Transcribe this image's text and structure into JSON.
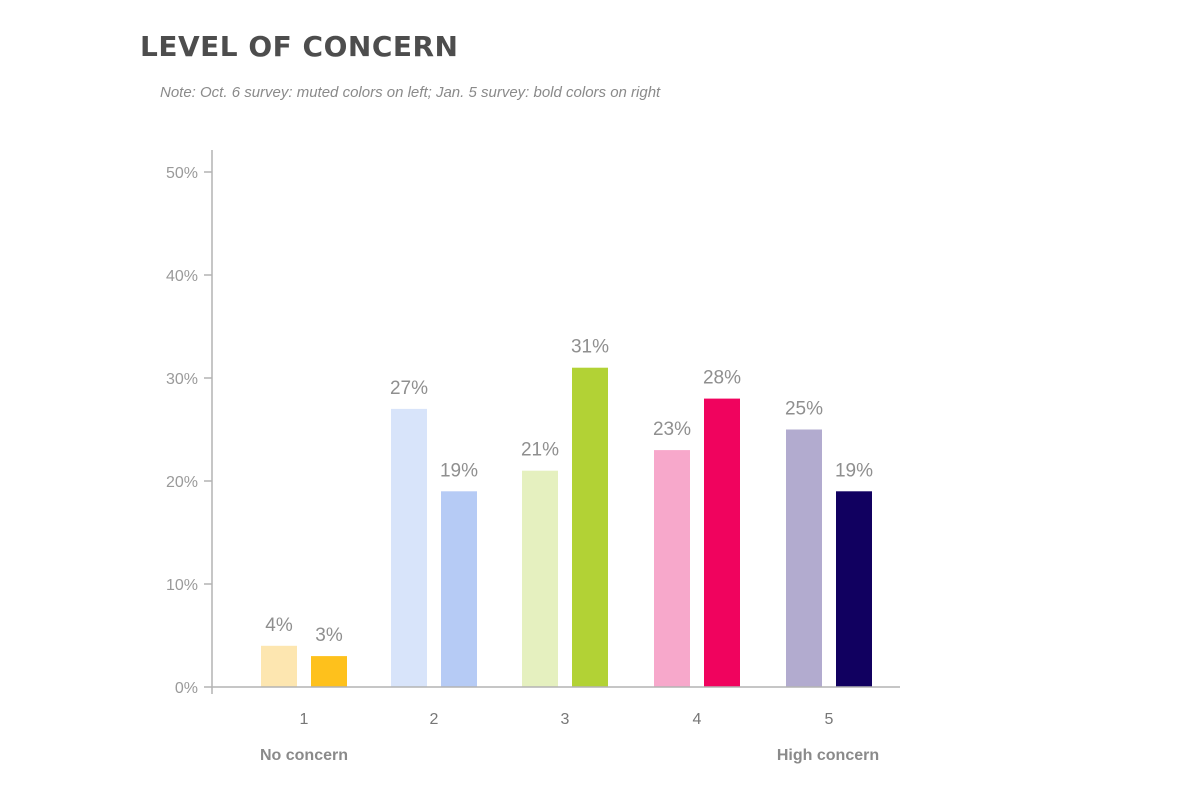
{
  "chart_data": {
    "type": "bar",
    "title": "LEVEL OF CONCERN",
    "note": "Note:  Oct. 6 survey: muted colors on left; Jan. 5 survey: bold colors on right",
    "categories": [
      "1",
      "2",
      "3",
      "4",
      "5"
    ],
    "series": [
      {
        "name": "Oct. 6 survey",
        "values": [
          4,
          27,
          21,
          23,
          25
        ],
        "labels": [
          "4%",
          "27%",
          "21%",
          "23%",
          "25%"
        ],
        "colors": [
          "#fde6b0",
          "#d8e4fa",
          "#e5f0bf",
          "#f7a8cb",
          "#b2abcf"
        ]
      },
      {
        "name": "Jan. 5 survey",
        "values": [
          3,
          19,
          31,
          28,
          19
        ],
        "labels": [
          "3%",
          "19%",
          "31%",
          "28%",
          "19%"
        ],
        "colors": [
          "#fec11c",
          "#b6cbf5",
          "#b2d235",
          "#f0035e",
          "#110060"
        ]
      }
    ],
    "ylim": [
      0,
      50
    ],
    "yticks": [
      0,
      10,
      20,
      30,
      40,
      50
    ],
    "ytick_labels": [
      "0%",
      "10%",
      "20%",
      "30%",
      "40%",
      "50%"
    ],
    "xlabel": "",
    "ylabel": "",
    "low_end_label": "No concern",
    "high_end_label": "High concern",
    "axis_color": "#b3b3b3"
  }
}
